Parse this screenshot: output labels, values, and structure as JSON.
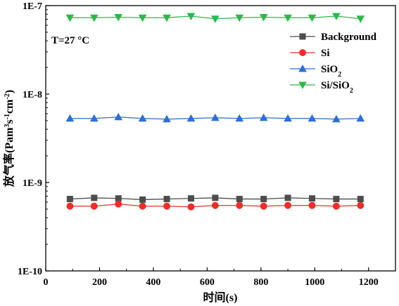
{
  "chart_data": {
    "type": "line",
    "title": "",
    "annotation": "T=27 °C",
    "xlabel": "时间(s)",
    "ylabel": {
      "prefix": "放气率(Pam",
      "sup1": "3",
      "mid1": "s",
      "sup2": "-1",
      "mid2": "cm",
      "sup3": "-2",
      "suffix": ")"
    },
    "x_scale": "linear",
    "y_scale": "log",
    "xlim": [
      0,
      1300
    ],
    "ylim": [
      1e-10,
      1e-07
    ],
    "xticks": [
      0,
      200,
      400,
      600,
      800,
      1000,
      1200
    ],
    "yticks": [
      {
        "value": 1e-10,
        "label": "1E-10"
      },
      {
        "value": 1e-09,
        "label": "1E-9"
      },
      {
        "value": 1e-08,
        "label": "1E-8"
      },
      {
        "value": 1e-07,
        "label": "1E-7"
      }
    ],
    "grid": false,
    "legend_position": "top-right",
    "x": [
      90,
      180,
      270,
      360,
      450,
      540,
      630,
      720,
      810,
      900,
      990,
      1080,
      1170
    ],
    "series": [
      {
        "name": "Background",
        "legend": {
          "base": "Background",
          "sub": ""
        },
        "color": "#4d4d4d",
        "marker": "square",
        "values": [
          6.5e-10,
          6.7e-10,
          6.6e-10,
          6.4e-10,
          6.5e-10,
          6.6e-10,
          6.7e-10,
          6.5e-10,
          6.5e-10,
          6.7e-10,
          6.6e-10,
          6.5e-10,
          6.5e-10
        ]
      },
      {
        "name": "Si",
        "legend": {
          "base": "Si",
          "sub": ""
        },
        "color": "#e8302a",
        "marker": "circle",
        "values": [
          5.4e-10,
          5.4e-10,
          5.7e-10,
          5.4e-10,
          5.4e-10,
          5.3e-10,
          5.5e-10,
          5.5e-10,
          5.4e-10,
          5.5e-10,
          5.5e-10,
          5.4e-10,
          5.5e-10
        ]
      },
      {
        "name": "SiO2",
        "legend": {
          "base": "SiO",
          "sub": "2"
        },
        "color": "#2f6fd1",
        "marker": "triangle-up",
        "values": [
          5.3e-09,
          5.3e-09,
          5.5e-09,
          5.3e-09,
          5.2e-09,
          5.3e-09,
          5.4e-09,
          5.3e-09,
          5.4e-09,
          5.3e-09,
          5.3e-09,
          5.2e-09,
          5.3e-09
        ]
      },
      {
        "name": "Si/SiO2",
        "legend": {
          "base": "Si/SiO",
          "sub": "2"
        },
        "color": "#2db84c",
        "marker": "triangle-down",
        "values": [
          7.3e-08,
          7.3e-08,
          7.4e-08,
          7.3e-08,
          7.3e-08,
          7.6e-08,
          7.1e-08,
          7.3e-08,
          7.4e-08,
          7.3e-08,
          7.3e-08,
          7.6e-08,
          7.1e-08
        ]
      }
    ]
  }
}
